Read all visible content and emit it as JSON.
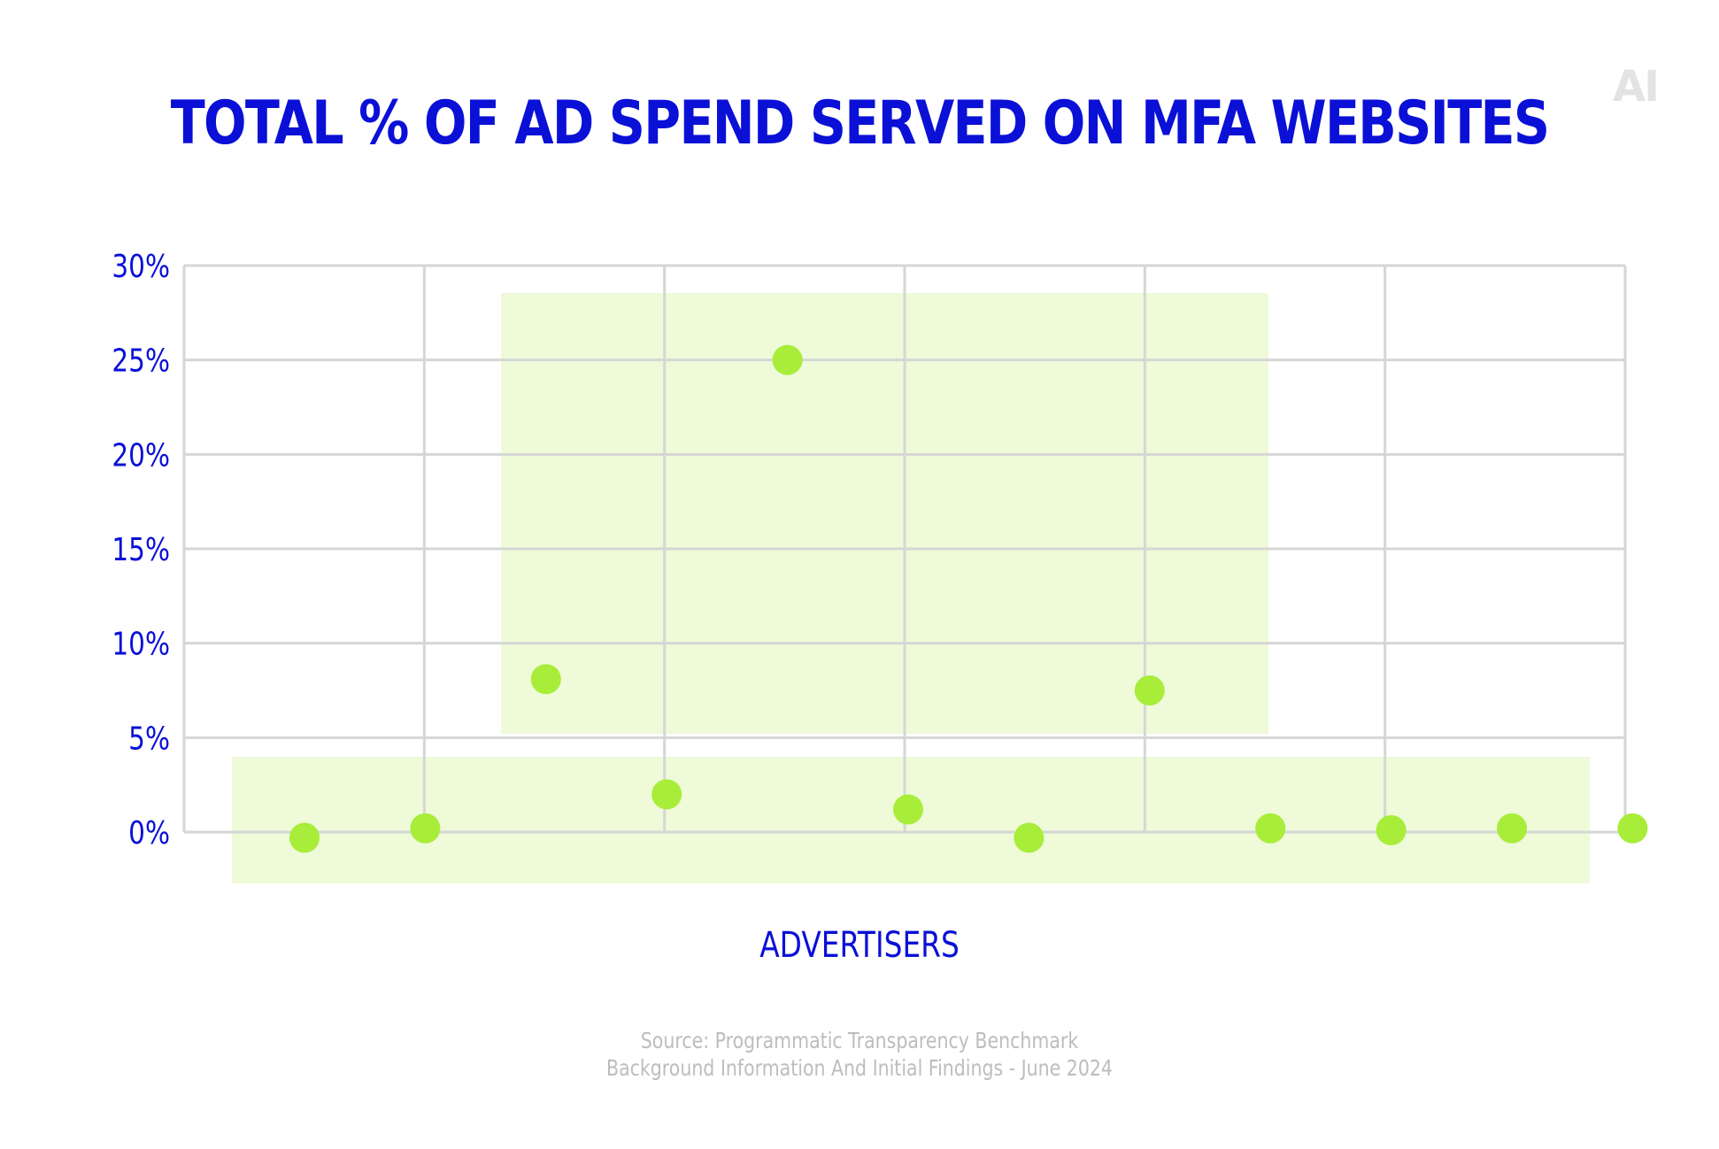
{
  "logo": "AI",
  "colors": {
    "title": "#0a10d6",
    "point": "#a8ed3a",
    "highlight": "#eefad8",
    "grid": "#d6d6d6",
    "source": "#bdbdbd"
  },
  "chart_data": {
    "type": "scatter",
    "title": "TOTAL % OF AD SPEND SERVED ON MFA WEBSITES",
    "xlabel": "ADVERTISERS",
    "ylabel": "",
    "ylim": [
      0,
      30
    ],
    "yticks": [
      "30%",
      "25%",
      "20%",
      "15%",
      "10%",
      "5%",
      "0%"
    ],
    "grid": true,
    "x": [
      1,
      2,
      3,
      4,
      5,
      6,
      7,
      8,
      9,
      10,
      11,
      12
    ],
    "values": [
      -0.3,
      0.2,
      8.1,
      2.0,
      25.0,
      1.2,
      -0.3,
      7.5,
      0.2,
      0.1,
      0.2,
      0.2
    ]
  },
  "source": {
    "line1": "Source: Programmatic Transparency Benchmark",
    "line2": "Background Information And Initial Findings - June 2024"
  }
}
